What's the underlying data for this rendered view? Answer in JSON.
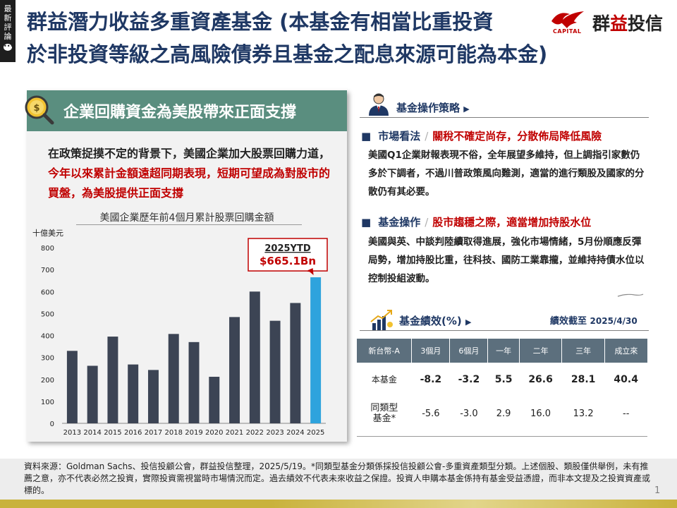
{
  "side_tab": {
    "line1": "最",
    "line2": "新",
    "line3": "評",
    "line4": "論"
  },
  "title": {
    "line1": "群益潛力收益多重資產基金 (本基金有相當比重投資",
    "line2": "於非投資等級之高風險債券且基金之配息來源可能為本金)"
  },
  "logo": {
    "capital": "CAPITAL",
    "brand_a": "群",
    "brand_b": "益",
    "brand_c": "投信"
  },
  "panel": {
    "heading": "企業回購資金為美股帶來正面支撐",
    "text_a": "在政策捉摸不定的背景下，美國企業加大股票回購力道，",
    "text_b": "今年以來累計金額遠超同期表現，短期可望成為對股市的買盤，為美股提供正面支撐"
  },
  "chart_data": {
    "type": "bar",
    "title": "美國企業歷年前4個月累計股票回購金額",
    "ylabel": "十億美元",
    "ylim": [
      0,
      800
    ],
    "yticks": [
      0,
      100,
      200,
      300,
      400,
      500,
      600,
      700,
      800
    ],
    "categories": [
      "2013",
      "2014",
      "2015",
      "2016",
      "2017",
      "2018",
      "2019",
      "2020",
      "2021",
      "2022",
      "2023",
      "2024",
      "2025"
    ],
    "values": [
      330,
      262,
      395,
      268,
      243,
      407,
      370,
      212,
      484,
      600,
      467,
      548,
      665.1
    ],
    "colors": {
      "default": "#3c4454",
      "highlight": "#2ea3dd"
    },
    "annotation": {
      "line1": "2025YTD",
      "line2": "$665.1Bn",
      "target": "2025"
    },
    "grid": false,
    "legend": "none"
  },
  "strategy": {
    "heading": "基金操作策略",
    "market_label": "市場看法",
    "market_headline": "關稅不確定尚存，分散佈局降低風險",
    "market_text": "美國Q1企業財報表現不俗，全年展望多維持，但上調指引家數仍多於下調者，不過川普政策風向難測，適當的進行類股及國家的分散仍有其必要。",
    "ops_label": "基金操作",
    "ops_headline": "股市趨穩之際，適當增加持股水位",
    "ops_text": "美國與英、中談判陸續取得進展，強化市場情緒，5月份順應反彈局勢，增加持股比重，往科技、國防工業靠攏，並維持持債水位以控制投組波動。"
  },
  "performance": {
    "heading": "基金績效(%)",
    "note_label": "績效截至 ",
    "note_date": "2025/4/30",
    "columns": [
      "新台幣-A",
      "3個月",
      "6個月",
      "一年",
      "二年",
      "三年",
      "成立來"
    ],
    "rows": [
      {
        "label": "本基金",
        "values": [
          "-8.2",
          "-3.2",
          "5.5",
          "26.6",
          "28.1",
          "40.4"
        ]
      },
      {
        "label_a": "同類型",
        "label_b": "基金*",
        "values": [
          "-5.6",
          "-3.0",
          "2.9",
          "16.0",
          "13.2",
          "--"
        ]
      }
    ]
  },
  "footer": {
    "text": "資料來源：Goldman Sachs、投信投顧公會，群益投信整理，2025/5/19。*同類型基金分類係採投信投顧公會-多重資產類型分類。上述個股、類股僅供舉例，未有推薦之意，亦不代表必然之投資，實際投資需視當時市場情況而定。過去績效不代表未來收益之保證。投資人申購本基金係持有基金受益憑證，而非本文提及之投資資產或標的。",
    "page": "1"
  }
}
